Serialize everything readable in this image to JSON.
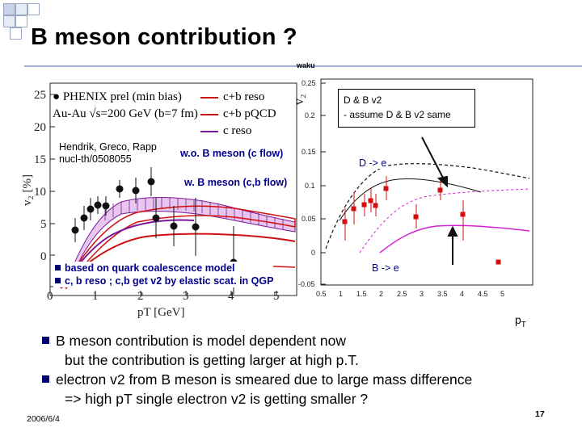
{
  "slide": {
    "title": "B meson contribution ?",
    "waku_label": "waku",
    "date": "2006/6/4",
    "page_number": "17",
    "pt_axis_label": "p",
    "pt_axis_sub": "T"
  },
  "left_plot": {
    "legend": {
      "phenix": "PHENIX prel (min bias)",
      "system": "Au-Au √s=200 GeV (b=7 fm)",
      "cb_reso": "c+b reso",
      "cb_pqcd": "c+b pQCD",
      "c_reso": "c reso"
    },
    "reference": [
      "Hendrik, Greco, Rapp",
      "nucl-th/0508055"
    ],
    "annotation_wo": "w.o. B meson (c flow)",
    "annotation_w": "w. B meson (c,b flow)",
    "notes": [
      "based on quark coalescence model",
      "c, b reso ; c,b get v2 by elastic scat. in QGP"
    ],
    "y_axis_label": "v₂ [%]",
    "x_axis_label": "pT [GeV]",
    "y_ticks": [
      "0",
      "5",
      "10",
      "15",
      "20",
      "25"
    ],
    "x_ticks": [
      "0",
      "1",
      "2",
      "3",
      "4",
      "5"
    ],
    "colors": {
      "cb_reso": "#d01010",
      "cb_pqcd": "#d01010",
      "c_reso": "#7a1a9a",
      "band": "#7a1a9a"
    }
  },
  "right_plot": {
    "y_axis_label": "v₂",
    "box_lines": [
      "D & B v2",
      " - assume D & B v2 same"
    ],
    "annotation_d": "D -> e",
    "annotation_b": "B -> e",
    "y_ticks": [
      "0.25",
      "0.2",
      "0.15",
      "0.1",
      "0.05",
      "0",
      "-0.05"
    ],
    "x_ticks": [
      "0.5",
      "1",
      "1.5",
      "2",
      "2.5",
      "3",
      "3.5",
      "4",
      "4.5",
      "5"
    ],
    "colors": {
      "d_curve": "#000000",
      "b_curve": "#d41fd4",
      "points": "#d01010"
    }
  },
  "bullets": [
    {
      "text": "B meson contribution is model dependent now",
      "continuation": "but the contribution is getting larger at high p.T."
    },
    {
      "text": "electron v2 from B meson is smeared due to large mass difference",
      "continuation": "=> high pT single electron v2 is getting smaller ?"
    }
  ]
}
